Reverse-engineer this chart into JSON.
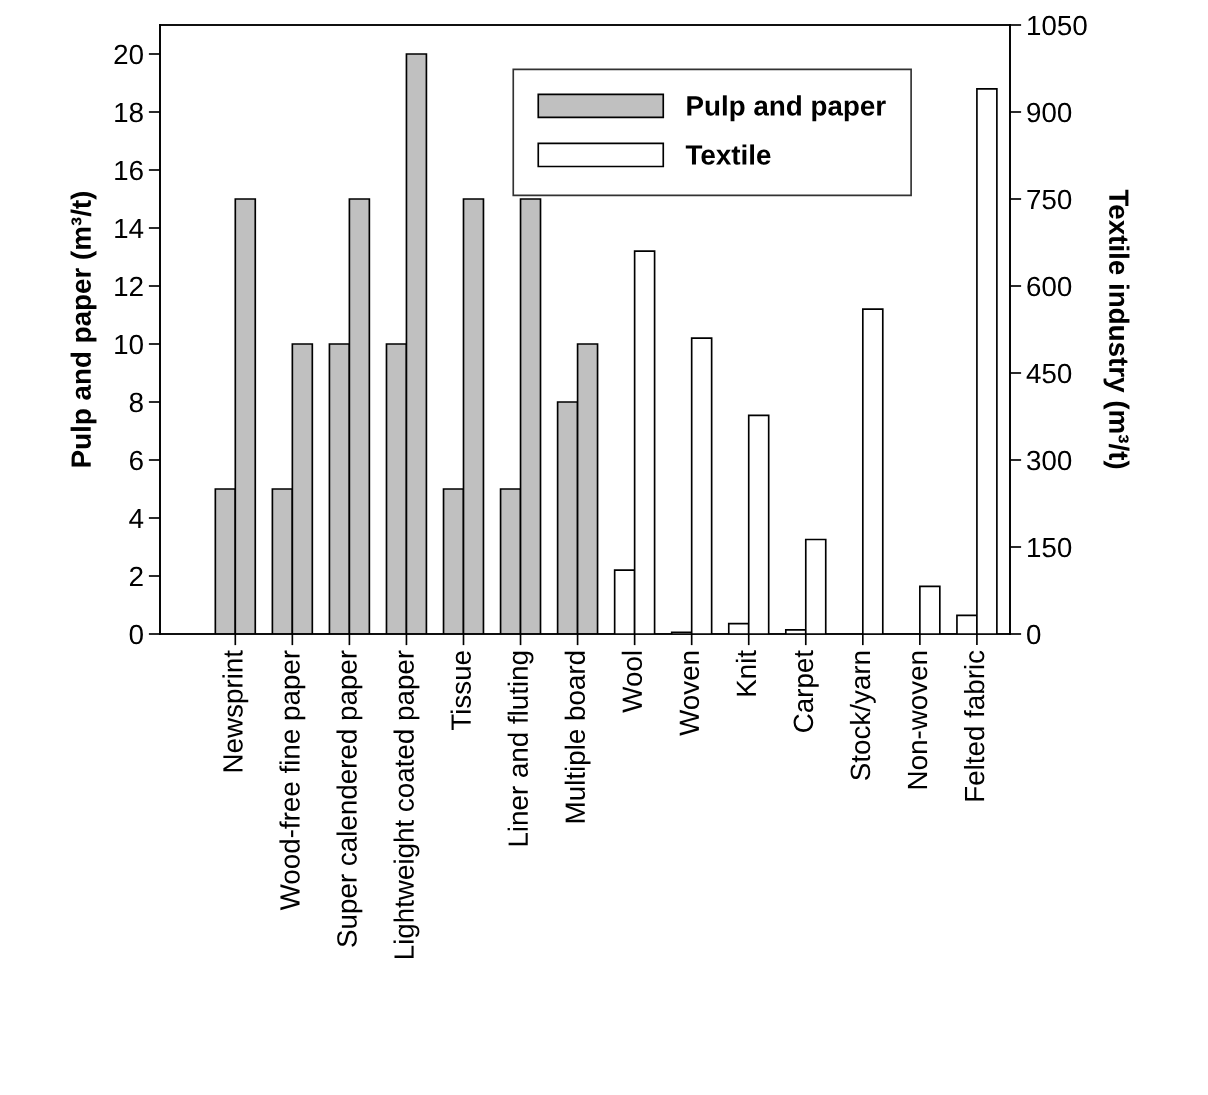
{
  "chart_data": {
    "type": "bar",
    "categories": [
      "Newsprint",
      "Wood-free fine paper",
      "Super calendered paper",
      "Lightweight coated paper",
      "Tissue",
      "Liner and fluting",
      "Multiple board",
      "Wool",
      "Woven",
      "Knit",
      "Carpet",
      "Stock/yarn",
      "Non-woven",
      "Felted fabric"
    ],
    "series": [
      {
        "name": "Pulp and paper",
        "color": "#c0c0c0",
        "values": [
          5,
          5,
          10,
          10,
          5,
          5,
          8,
          null,
          null,
          null,
          null,
          null,
          null,
          null
        ]
      },
      {
        "color": "#c0c0c0",
        "values": [
          15,
          10,
          15,
          20,
          15,
          15,
          10,
          null,
          null,
          null,
          null,
          null,
          null,
          null
        ]
      },
      {
        "name": "Textile",
        "color": "#ffffff",
        "axis": "y2",
        "values": [
          null,
          null,
          null,
          null,
          null,
          null,
          null,
          110,
          3,
          18,
          7,
          null,
          null,
          32
        ]
      },
      {
        "color": "#ffffff",
        "axis": "y2",
        "values": [
          null,
          null,
          null,
          null,
          null,
          null,
          null,
          660,
          510,
          377,
          163,
          560,
          82,
          940
        ]
      }
    ],
    "ylabel": "Pulp and paper (m³/t)",
    "y2label": "Textile industry (m³/t)",
    "ylim": [
      0,
      21
    ],
    "yticks": [
      0,
      2,
      4,
      6,
      8,
      10,
      12,
      14,
      16,
      18,
      20
    ],
    "y2lim": [
      0,
      1050
    ],
    "y2ticks": [
      0,
      150,
      300,
      450,
      600,
      750,
      900,
      1050
    ],
    "legend": "top right",
    "grid": false
  }
}
